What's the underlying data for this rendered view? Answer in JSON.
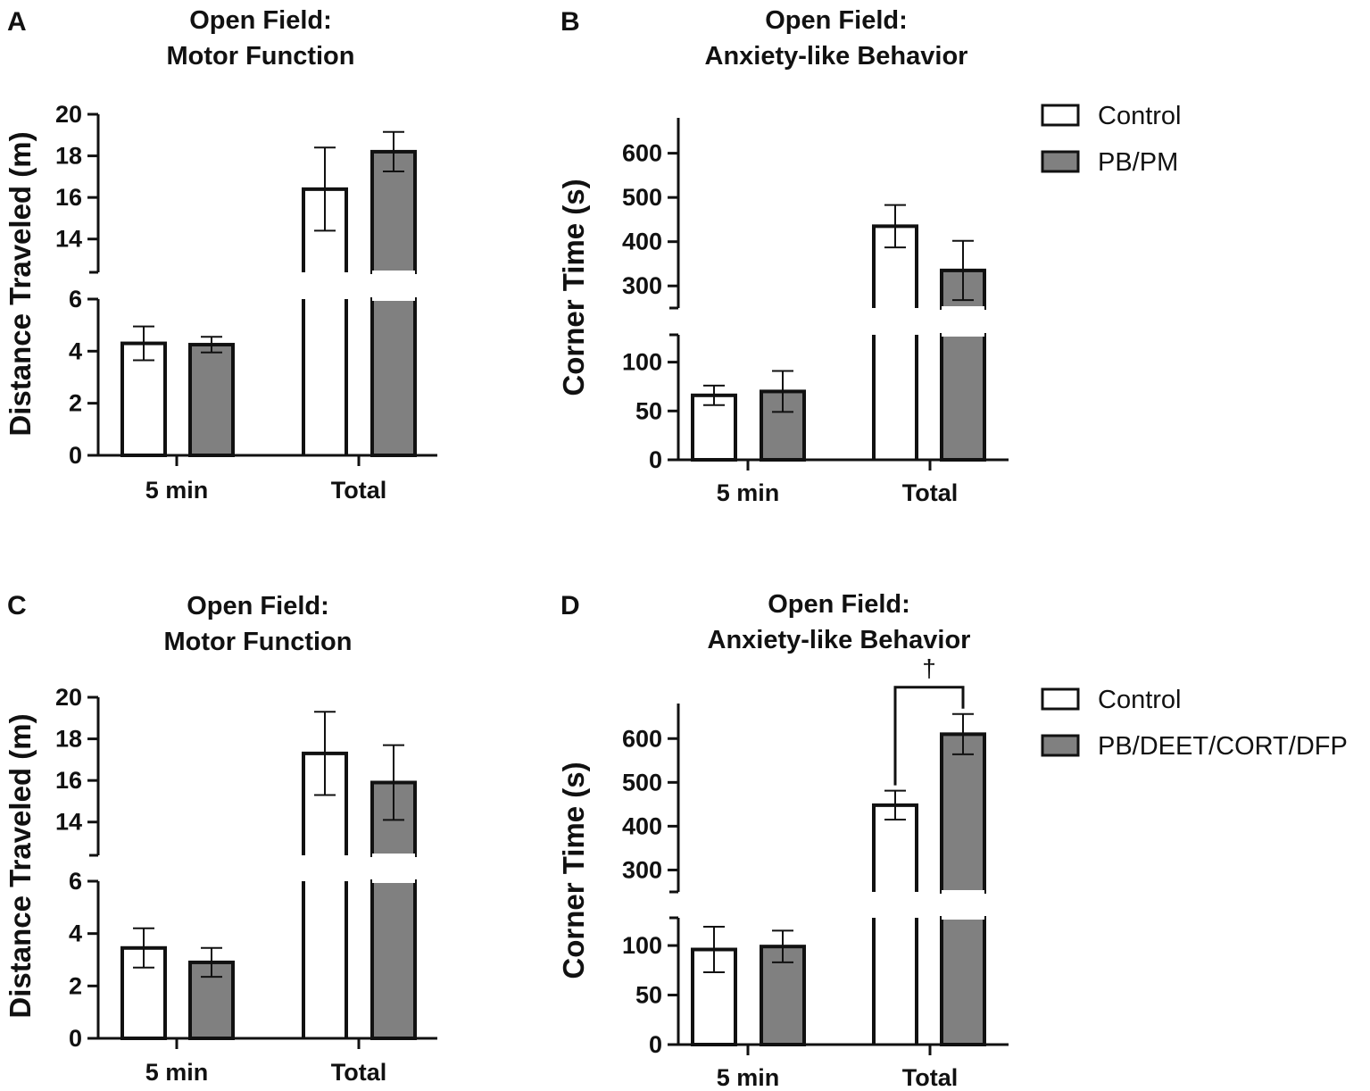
{
  "colors": {
    "control": "#ffffff",
    "treatment": "#808080",
    "stroke": "#111111"
  },
  "chart_data": [
    {
      "id": "A",
      "panel_label": "A",
      "type": "bar",
      "title": [
        "Open Field:",
        "Motor Function"
      ],
      "ylabel": "Distance Traveled (m)",
      "categories": [
        "5 min",
        "Total"
      ],
      "series": [
        {
          "name": "Control",
          "values": [
            4.3,
            16.4
          ],
          "errors": [
            0.65,
            2.0
          ]
        },
        {
          "name": "PB/PM",
          "values": [
            4.25,
            18.2
          ],
          "errors": [
            0.3,
            0.95
          ]
        }
      ],
      "ybreak": {
        "lower": {
          "range": [
            0,
            6
          ],
          "ticks": [
            0,
            2,
            4,
            6
          ]
        },
        "upper": {
          "range": [
            12.4,
            20
          ],
          "ticks": [
            14,
            16,
            18,
            20
          ]
        }
      },
      "legend": null,
      "significance": null
    },
    {
      "id": "B",
      "panel_label": "B",
      "type": "bar",
      "title": [
        "Open Field:",
        "Anxiety-like Behavior"
      ],
      "ylabel": "Corner Time (s)",
      "categories": [
        "5 min",
        "Total"
      ],
      "series": [
        {
          "name": "Control",
          "values": [
            66,
            435
          ],
          "errors": [
            10,
            48
          ]
        },
        {
          "name": "PB/PM",
          "values": [
            70,
            335
          ],
          "errors": [
            21,
            67
          ]
        }
      ],
      "ybreak": {
        "lower": {
          "range": [
            0,
            128
          ],
          "ticks": [
            0,
            50,
            100
          ]
        },
        "upper": {
          "range": [
            250,
            680
          ],
          "ticks": [
            300,
            400,
            500,
            600
          ]
        }
      },
      "legend": {
        "items": [
          "Control",
          "PB/PM"
        ],
        "position": "right"
      },
      "significance": null
    },
    {
      "id": "C",
      "panel_label": "C",
      "type": "bar",
      "title": [
        "Open Field:",
        "Motor Function"
      ],
      "ylabel": "Distance Traveled (m)",
      "categories": [
        "5 min",
        "Total"
      ],
      "series": [
        {
          "name": "Control",
          "values": [
            3.45,
            17.3
          ],
          "errors": [
            0.75,
            2.0
          ]
        },
        {
          "name": "PB/DEET/CORT/DFP",
          "values": [
            2.9,
            15.9
          ],
          "errors": [
            0.55,
            1.8
          ]
        }
      ],
      "ybreak": {
        "lower": {
          "range": [
            0,
            6
          ],
          "ticks": [
            0,
            2,
            4,
            6
          ]
        },
        "upper": {
          "range": [
            12.4,
            20
          ],
          "ticks": [
            14,
            16,
            18,
            20
          ]
        }
      },
      "legend": null,
      "significance": null
    },
    {
      "id": "D",
      "panel_label": "D",
      "type": "bar",
      "title": [
        "Open Field:",
        "Anxiety-like Behavior"
      ],
      "ylabel": "Corner Time (s)",
      "categories": [
        "5 min",
        "Total"
      ],
      "series": [
        {
          "name": "Control",
          "values": [
            96,
            448
          ],
          "errors": [
            23,
            33
          ]
        },
        {
          "name": "PB/DEET/CORT/DFP",
          "values": [
            99,
            610
          ],
          "errors": [
            16,
            46
          ]
        }
      ],
      "ybreak": {
        "lower": {
          "range": [
            0,
            128
          ],
          "ticks": [
            0,
            50,
            100
          ]
        },
        "upper": {
          "range": [
            250,
            680
          ],
          "ticks": [
            300,
            400,
            500,
            600
          ]
        }
      },
      "legend": {
        "items": [
          "Control",
          "PB/DEET/CORT/DFP"
        ],
        "position": "right"
      },
      "significance": {
        "category": "Total",
        "symbol": "†"
      }
    }
  ]
}
